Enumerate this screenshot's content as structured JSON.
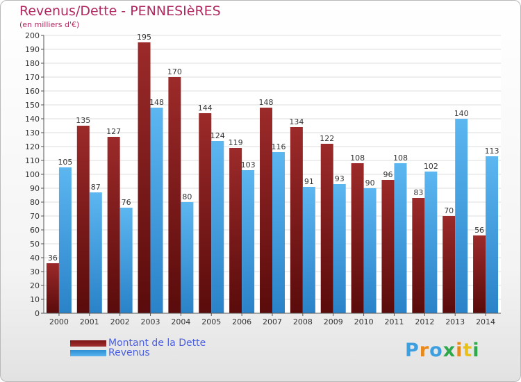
{
  "header": {
    "title": "Revenus/Dette - PENNESIèRES",
    "subtitle": "(en milliers d'€)"
  },
  "chart_data": {
    "type": "bar",
    "categories": [
      "2000",
      "2001",
      "2002",
      "2003",
      "2004",
      "2005",
      "2006",
      "2007",
      "2008",
      "2009",
      "2010",
      "2011",
      "2012",
      "2013",
      "2014"
    ],
    "series": [
      {
        "name": "Montant de la Dette",
        "color": "#8b1a1a",
        "values": [
          36,
          135,
          127,
          195,
          170,
          144,
          119,
          148,
          134,
          122,
          108,
          96,
          83,
          70,
          56
        ]
      },
      {
        "name": "Revenus",
        "color": "#3d9ee0",
        "values": [
          105,
          87,
          76,
          148,
          80,
          124,
          103,
          116,
          91,
          93,
          90,
          108,
          102,
          140,
          113
        ]
      }
    ],
    "ylim": [
      0,
      200
    ],
    "ytick_step": 10,
    "grid": true,
    "legend_position": "bottom-left"
  },
  "legend": {
    "items": [
      {
        "label": "Montant de la Dette",
        "color": "#8b1a1a"
      },
      {
        "label": "Revenus",
        "color": "#3d9ee0"
      }
    ]
  },
  "logo": {
    "letters": [
      "P",
      "r",
      "o",
      "x",
      "i",
      "t",
      "i"
    ],
    "colors": [
      "#3d9ee0",
      "#e8891a",
      "#3d9ee0",
      "#2da84a",
      "#e8891a",
      "#e8c21a",
      "#2da84a"
    ]
  }
}
